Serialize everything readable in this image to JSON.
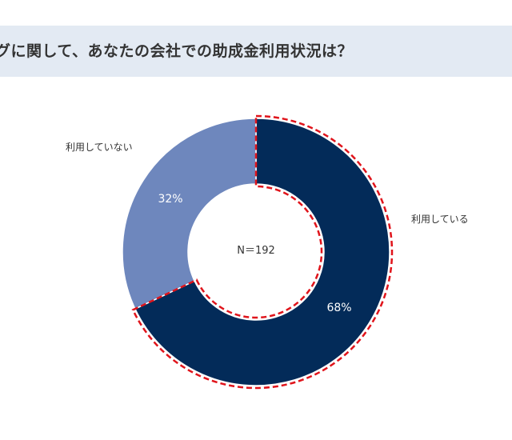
{
  "header": {
    "title": "グに関して、あなたの会社での助成金利用状況は？"
  },
  "colors": {
    "header_bg": "#e3eaf3",
    "used": "#032b59",
    "not_used": "#6e87bd",
    "highlight": "#e0141b"
  },
  "chart_data": {
    "type": "pie",
    "variant": "donut",
    "center_label": "N＝192",
    "slices": [
      {
        "label": "利用している",
        "value": 68,
        "value_label": "68%",
        "color": "#032b59",
        "highlighted": true
      },
      {
        "label": "利用していない",
        "value": 32,
        "value_label": "32%",
        "color": "#6e87bd",
        "highlighted": false
      }
    ],
    "start": "12 o'clock",
    "direction": "clockwise"
  }
}
